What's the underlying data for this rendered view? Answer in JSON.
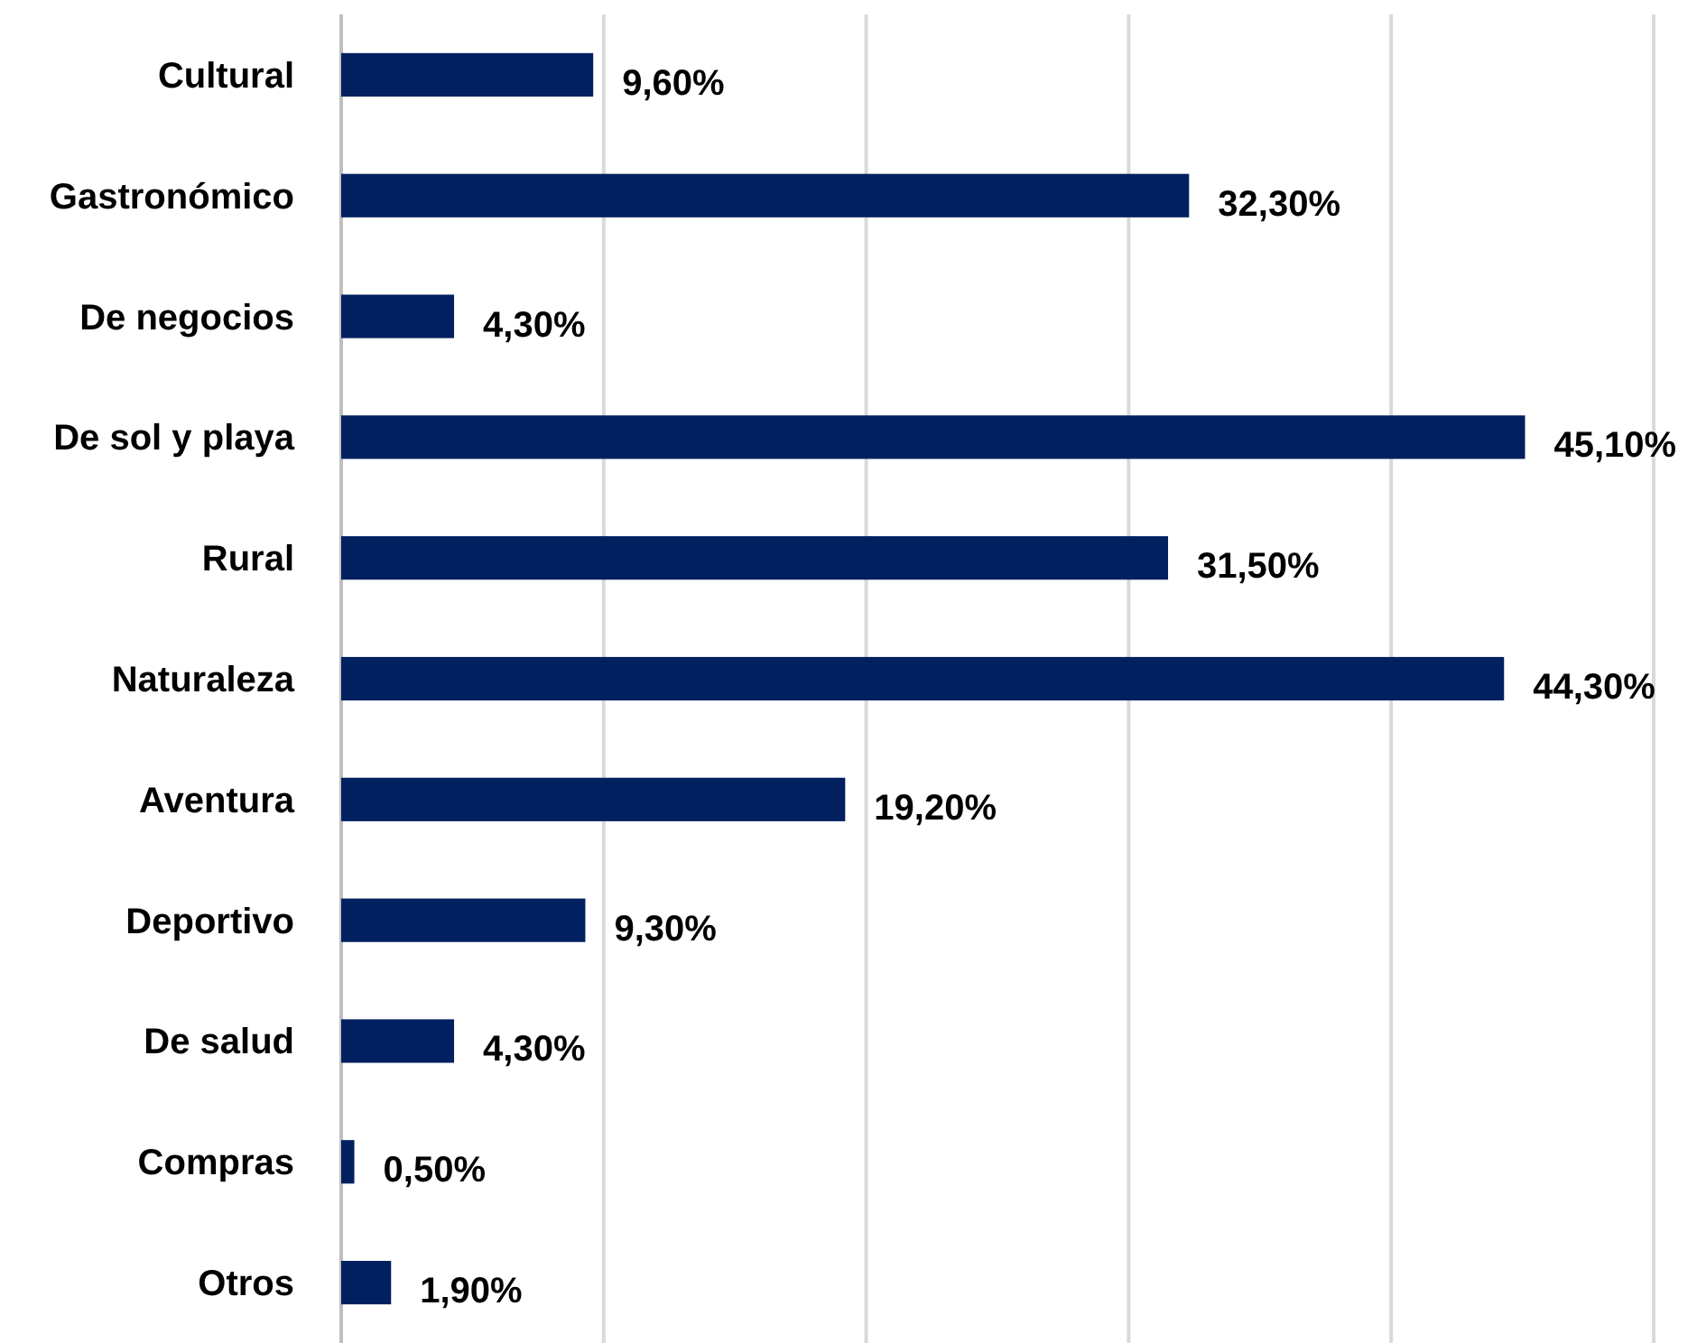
{
  "chart_data": {
    "type": "bar",
    "orientation": "horizontal",
    "categories": [
      "Cultural",
      "Gastronómico",
      "De negocios",
      "De sol y playa",
      "Rural",
      "Naturaleza",
      "Aventura",
      "Deportivo",
      "De salud",
      "Compras",
      "Otros"
    ],
    "values": [
      9.6,
      32.3,
      4.3,
      45.1,
      31.5,
      44.3,
      19.2,
      9.3,
      4.3,
      0.5,
      1.9
    ],
    "value_labels": [
      "9,60%",
      "32,30%",
      "4,30%",
      "45,10%",
      "31,50%",
      "44,30%",
      "19,20%",
      "9,30%",
      "4,30%",
      "0,50%",
      "1,90%"
    ],
    "color": "#002060",
    "xlim": [
      0,
      50
    ],
    "xticks": [
      {
        "value": 0,
        "label": null
      },
      {
        "value": 10,
        "label": null
      },
      {
        "value": 20,
        "label": null
      },
      {
        "value": 30,
        "label": null
      },
      {
        "value": 40,
        "label": null
      },
      {
        "value": 50,
        "label": null
      }
    ],
    "grid": "x",
    "tick_labels": "y"
  }
}
